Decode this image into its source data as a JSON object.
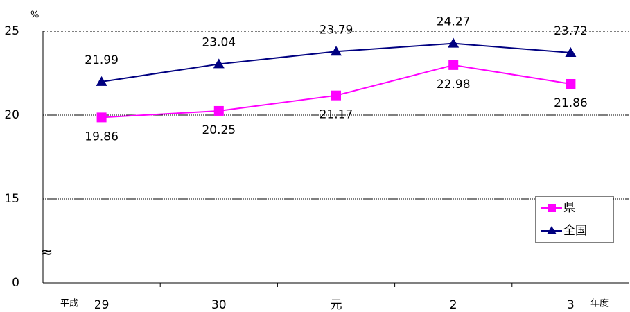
{
  "chart_data": {
    "type": "line",
    "ylabel": "%",
    "era_label": "平成",
    "xlabel": "年度",
    "categories": [
      "29",
      "30",
      "元",
      "2",
      "3"
    ],
    "series": [
      {
        "name": "県",
        "color": "#ff00ff",
        "marker": "square",
        "label_position": "below",
        "values": [
          19.86,
          20.25,
          21.17,
          22.98,
          21.86
        ]
      },
      {
        "name": "全国",
        "color": "#000080",
        "marker": "triangle",
        "label_position": "above",
        "values": [
          21.99,
          23.04,
          23.79,
          24.27,
          23.72
        ]
      }
    ],
    "ylim": [
      0,
      25
    ],
    "yticks": [
      0,
      15,
      20,
      25
    ],
    "y_break": [
      0,
      15
    ],
    "grid": true,
    "legend": "lower right"
  }
}
